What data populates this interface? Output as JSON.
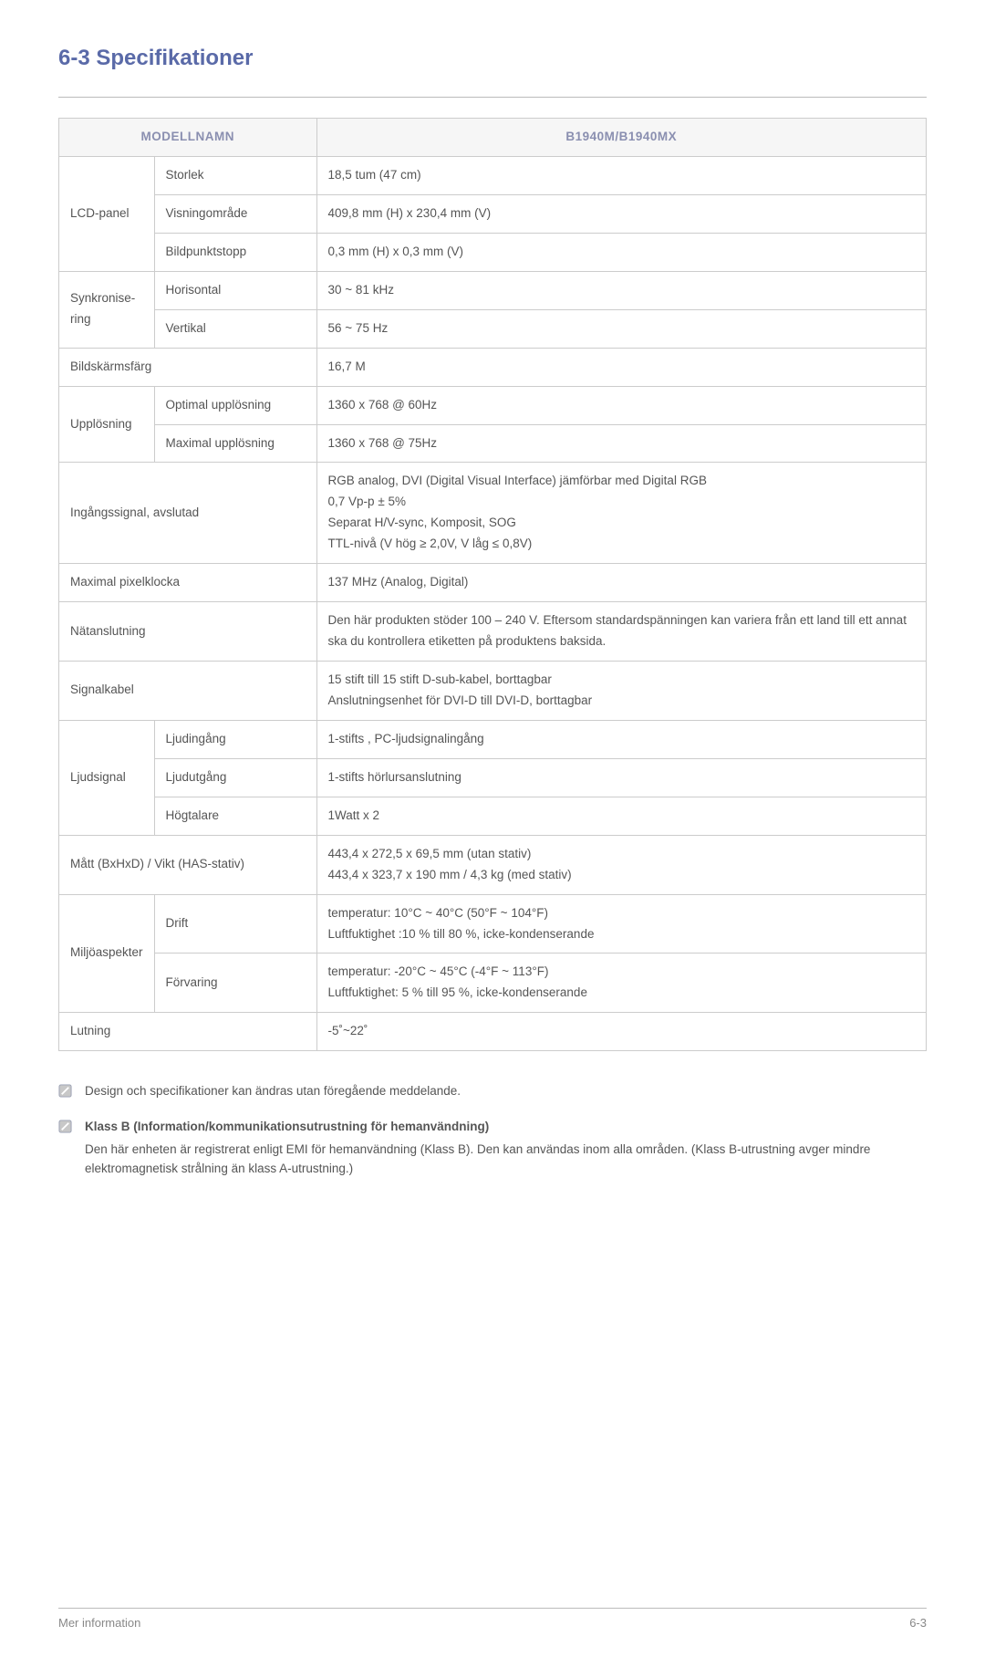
{
  "heading": "6-3   Specifikationer",
  "table": {
    "header_left": "MODELLNAMN",
    "header_right": "B1940M/B1940MX",
    "rows": [
      {
        "c1": "LCD-panel",
        "c1_rowspan": 3,
        "c2": "Storlek",
        "val": "18,5 tum (47 cm)"
      },
      {
        "c2": "Visningområde",
        "val": "409,8 mm (H) x 230,4 mm (V)"
      },
      {
        "c2": "Bildpunktstopp",
        "val": "0,3 mm (H) x 0,3 mm (V)"
      },
      {
        "c1": "Synkronise-ring",
        "c1_rowspan": 2,
        "c2": "Horisontal",
        "val": "30 ~ 81 kHz"
      },
      {
        "c2": "Vertikal",
        "val": "56 ~ 75 Hz"
      },
      {
        "c1": "Bildskärmsfärg",
        "c1_colspan": 2,
        "val": "16,7 M"
      },
      {
        "c1": "Upplösning",
        "c1_rowspan": 2,
        "c2": "Optimal upplösning",
        "val": "1360 x 768 @ 60Hz"
      },
      {
        "c2": "Maximal upplösning",
        "val": "1360 x 768 @ 75Hz"
      },
      {
        "c1": "Ingångssignal, avslutad",
        "c1_colspan": 2,
        "val": "RGB analog, DVI (Digital Visual Interface) jämförbar med Digital RGB\n0,7 Vp-p ± 5%\nSeparat H/V-sync, Komposit, SOG\nTTL-nivå (V hög ≥ 2,0V, V låg ≤ 0,8V)"
      },
      {
        "c1": "Maximal pixelklocka",
        "c1_colspan": 2,
        "val": "137 MHz (Analog, Digital)"
      },
      {
        "c1": "Nätanslutning",
        "c1_colspan": 2,
        "val": "Den här produkten stöder 100 – 240 V. Eftersom standardspänningen kan variera från ett land till ett annat ska du kontrollera etiketten på produktens baksida."
      },
      {
        "c1": "Signalkabel",
        "c1_colspan": 2,
        "val": "15 stift till 15 stift D-sub-kabel, borttagbar\nAnslutningsenhet för DVI-D till DVI-D, borttagbar"
      },
      {
        "c1": "Ljudsignal",
        "c1_rowspan": 3,
        "c2": "Ljudingång",
        "val": "1-stifts , PC-ljudsignalingång"
      },
      {
        "c2": "Ljudutgång",
        "val": "1-stifts hörlursanslutning"
      },
      {
        "c2": "Högtalare",
        "val": "1Watt x 2"
      },
      {
        "c1": "Mått (BxHxD) / Vikt (HAS-stativ)",
        "c1_colspan": 2,
        "val": "443,4 x 272,5 x 69,5 mm (utan stativ)\n443,4 x 323,7 x 190 mm / 4,3 kg (med stativ)"
      },
      {
        "c1": "Miljöaspekter",
        "c1_rowspan": 2,
        "c2": "Drift",
        "val": "temperatur: 10°C ~ 40°C (50°F ~ 104°F)\nLuftfuktighet :10 % till 80 %, icke-kondenserande"
      },
      {
        "c2": "Förvaring",
        "val": "temperatur: -20°C ~ 45°C (-4°F ~ 113°F)\nLuftfuktighet: 5 % till 95 %, icke-kondenserande"
      },
      {
        "c1": "Lutning",
        "c1_colspan": 2,
        "val": "-5˚~22˚"
      }
    ]
  },
  "notes": [
    {
      "bold": "",
      "body": "Design och specifikationer kan ändras utan föregående meddelande."
    },
    {
      "bold": "Klass B (Information/kommunikationsutrustning för hemanvändning)",
      "body": "Den här enheten är registrerat enligt EMI för hemanvändning (Klass B). Den kan användas inom alla områden. (Klass B-utrustning avger mindre elektromagnetisk strålning än klass A-utrustning.)"
    }
  ],
  "footer": {
    "left": "Mer information",
    "right": "6-3"
  },
  "icon_color_fill": "#c8c8c8",
  "icon_color_stroke": "#9aa0b4"
}
